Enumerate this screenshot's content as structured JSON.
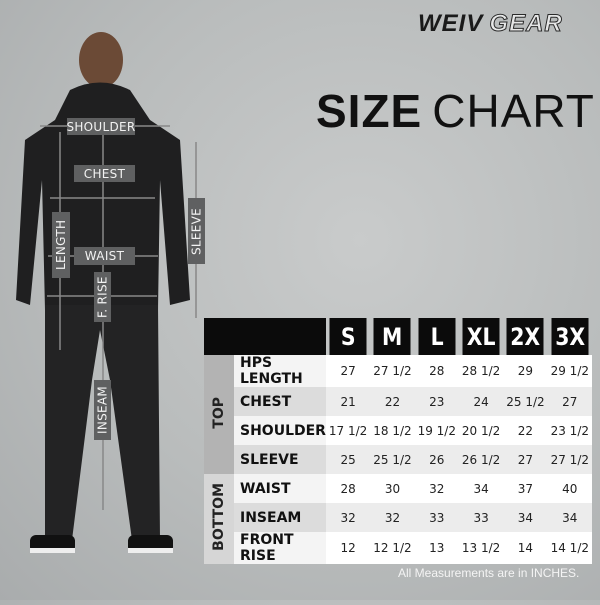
{
  "brand": {
    "logo_part1": "WEIV",
    "logo_part2": "GEAR"
  },
  "title": {
    "bold": "SIZE",
    "thin": "CHART"
  },
  "figure_labels": {
    "shoulder": "SHOULDER",
    "chest": "CHEST",
    "length": "LENGTH",
    "sleeve": "SLEEVE",
    "waist": "WAIST",
    "front_rise": "F. RISE",
    "inseam": "INSEAM"
  },
  "table": {
    "sizes": [
      "S",
      "M",
      "L",
      "XL",
      "2X",
      "3X"
    ],
    "groups": {
      "top": "TOP",
      "bottom": "BOTTOM"
    },
    "rows": [
      {
        "label": "HPS LENGTH",
        "values": [
          "27",
          "27 1/2",
          "28",
          "28 1/2",
          "29",
          "29 1/2"
        ]
      },
      {
        "label": "CHEST",
        "values": [
          "21",
          "22",
          "23",
          "24",
          "25 1/2",
          "27"
        ]
      },
      {
        "label": "SHOULDER",
        "values": [
          "17 1/2",
          "18 1/2",
          "19 1/2",
          "20 1/2",
          "22",
          "23 1/2"
        ]
      },
      {
        "label": "SLEEVE",
        "values": [
          "25",
          "25 1/2",
          "26",
          "26 1/2",
          "27",
          "27 1/2"
        ]
      },
      {
        "label": "WAIST",
        "values": [
          "28",
          "30",
          "32",
          "34",
          "37",
          "40"
        ]
      },
      {
        "label": "INSEAM",
        "values": [
          "32",
          "32",
          "33",
          "33",
          "34",
          "34"
        ]
      },
      {
        "label": "FRONT RISE",
        "values": [
          "12",
          "12 1/2",
          "13",
          "13 1/2",
          "14",
          "14 1/2"
        ]
      }
    ]
  },
  "note": "All Measurements are in INCHES.",
  "colors": {
    "header": "#0b0b0b",
    "tag": "#5f6061",
    "garment": "#222222"
  }
}
